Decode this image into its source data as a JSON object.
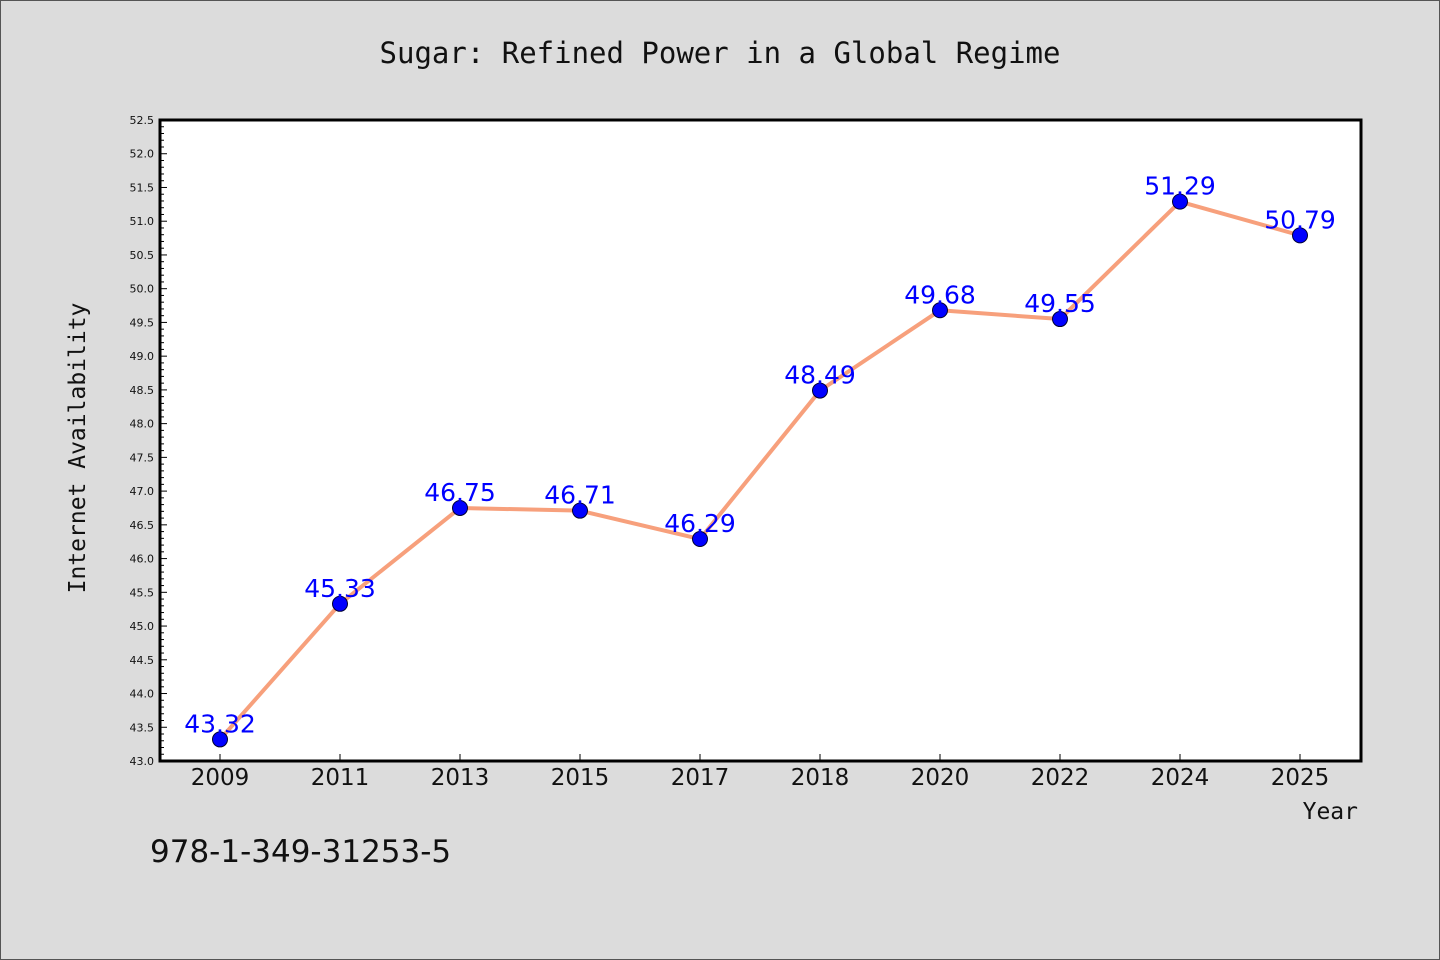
{
  "chart_data": {
    "type": "line",
    "title": "Sugar: Refined Power in a Global Regime",
    "xlabel": "Year",
    "ylabel": "Internet Availability",
    "categories": [
      "2009",
      "2011",
      "2013",
      "2015",
      "2017",
      "2018",
      "2020",
      "2022",
      "2024",
      "2025"
    ],
    "series": [
      {
        "values": [
          43.32,
          45.33,
          46.75,
          46.71,
          46.29,
          48.49,
          49.68,
          49.55,
          51.29,
          50.79
        ],
        "labels": [
          "43.32",
          "45.33",
          "46.75",
          "46.71",
          "46.29",
          "48.49",
          "49.68",
          "49.55",
          "51.29",
          "50.79"
        ],
        "line_color": "#f7a07c",
        "marker_color": "#0000ff"
      }
    ],
    "ylim": [
      43.0,
      52.5
    ],
    "y_ticks": [
      "43.0",
      "43.5",
      "44.0",
      "44.5",
      "45.0",
      "45.5",
      "46.0",
      "46.5",
      "47.0",
      "47.5",
      "48.0",
      "48.5",
      "49.0",
      "49.5",
      "50.0",
      "50.5",
      "51.0",
      "51.5",
      "52.0",
      "52.5"
    ],
    "grid": false,
    "legend": "none"
  },
  "footer": {
    "isbn": "978-1-349-31253-5"
  },
  "colors": {
    "background": "#dcdcdc",
    "plot_background": "#ffffff",
    "line": "#f7a07c",
    "marker": "#0000ff",
    "data_label": "#0000ff"
  }
}
